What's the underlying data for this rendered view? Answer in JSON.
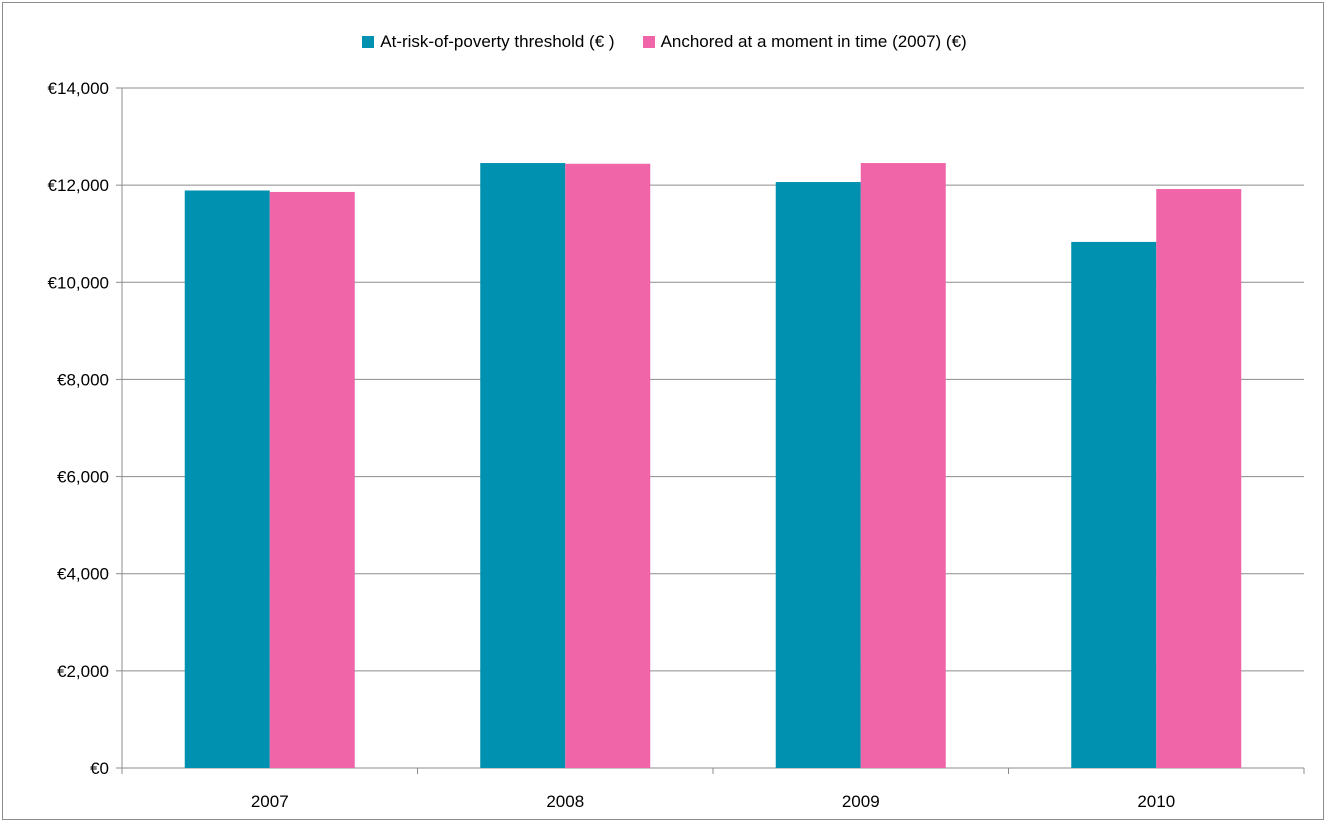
{
  "chart_data": {
    "type": "bar",
    "categories": [
      "2007",
      "2008",
      "2009",
      "2010"
    ],
    "series": [
      {
        "name": "At-risk-of-poverty threshold (€ )",
        "color": "#0090b0",
        "values": [
          11890,
          12455,
          12064,
          10831
        ]
      },
      {
        "name": "Anchored at a moment in time (2007) (€)",
        "color": "#f064a8",
        "values": [
          11860,
          12440,
          12455,
          11920
        ]
      }
    ],
    "y_ticks": [
      "€0",
      "€2,000",
      "€4,000",
      "€6,000",
      "€8,000",
      "€10,000",
      "€12,000",
      "€14,000"
    ],
    "ylim": [
      0,
      14000
    ],
    "y_step": 2000,
    "grid": true,
    "legend_position": "top-center"
  }
}
